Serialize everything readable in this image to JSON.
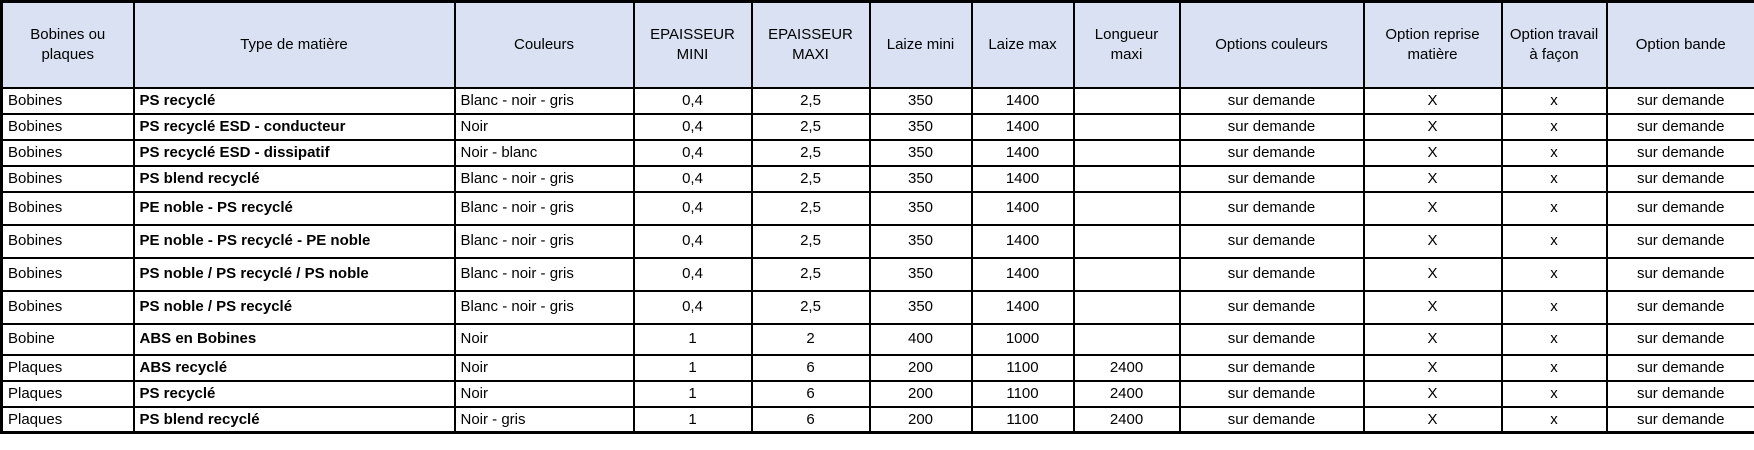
{
  "colors": {
    "header_bg": "#d9e1f2",
    "border": "#000000",
    "row_bg": "#ffffff",
    "text": "#000000"
  },
  "table": {
    "headers": [
      "Bobines ou plaques",
      "Type de matière",
      "Couleurs",
      "EPAISSEUR MINI",
      "EPAISSEUR MAXI",
      "Laize mini",
      "Laize max",
      "Longueur maxi",
      "Options couleurs",
      "Option reprise matière",
      "Option travail à façon",
      "Option bande"
    ],
    "rows": [
      [
        "Bobines",
        "PS recyclé",
        "Blanc - noir - gris",
        "0,4",
        "2,5",
        "350",
        "1400",
        "",
        "sur demande",
        "X",
        "x",
        "sur demande"
      ],
      [
        "Bobines",
        "PS recyclé  ESD - conducteur",
        "Noir",
        "0,4",
        "2,5",
        "350",
        "1400",
        "",
        "sur demande",
        "X",
        "x",
        "sur demande"
      ],
      [
        "Bobines",
        "PS recyclé ESD - dissipatif",
        "Noir - blanc",
        "0,4",
        "2,5",
        "350",
        "1400",
        "",
        "sur demande",
        "X",
        "x",
        "sur demande"
      ],
      [
        "Bobines",
        "PS blend recyclé",
        "Blanc - noir - gris",
        "0,4",
        "2,5",
        "350",
        "1400",
        "",
        "sur demande",
        "X",
        "x",
        "sur demande"
      ],
      [
        "Bobines",
        "PE noble - PS recyclé",
        "Blanc - noir - gris",
        "0,4",
        "2,5",
        "350",
        "1400",
        "",
        "sur demande",
        "X",
        "x",
        "sur demande"
      ],
      [
        "Bobines",
        "PE noble - PS recyclé - PE noble",
        "Blanc - noir - gris",
        "0,4",
        "2,5",
        "350",
        "1400",
        "",
        "sur demande",
        "X",
        "x",
        "sur demande"
      ],
      [
        "Bobines",
        "PS noble / PS recyclé / PS noble",
        "Blanc - noir - gris",
        "0,4",
        "2,5",
        "350",
        "1400",
        "",
        "sur demande",
        "X",
        "x",
        "sur demande"
      ],
      [
        "Bobines",
        "PS noble / PS recyclé",
        "Blanc - noir - gris",
        "0,4",
        "2,5",
        "350",
        "1400",
        "",
        "sur demande",
        "X",
        "x",
        "sur demande"
      ],
      [
        "Bobine",
        "ABS en Bobines",
        "Noir",
        "1",
        "2",
        "400",
        "1000",
        "",
        "sur demande",
        "X",
        "x",
        "sur demande"
      ],
      [
        "Plaques",
        "ABS recyclé",
        "Noir",
        "1",
        "6",
        "200",
        "1100",
        "2400",
        "sur demande",
        "X",
        "x",
        "sur demande"
      ],
      [
        "Plaques",
        "PS recyclé",
        "Noir",
        "1",
        "6",
        "200",
        "1100",
        "2400",
        "sur demande",
        "X",
        "x",
        "sur demande"
      ],
      [
        "Plaques",
        "PS blend recyclé",
        "Noir - gris",
        "1",
        "6",
        "200",
        "1100",
        "2400",
        "sur demande",
        "X",
        "x",
        "sur demande"
      ]
    ]
  }
}
